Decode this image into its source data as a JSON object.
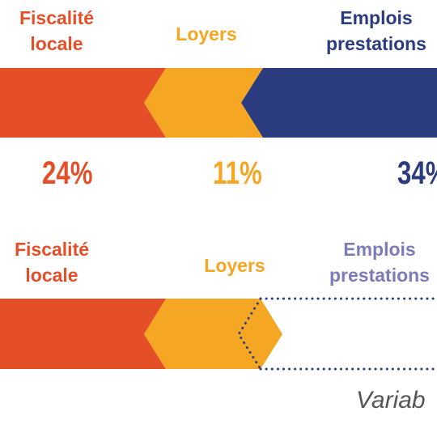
{
  "colors": {
    "orange_red": "#e44f28",
    "amber": "#f5a623",
    "navy": "#2a3b7e",
    "lavender": "#7e7cb8",
    "gray_text": "#555555"
  },
  "row1": {
    "labels": {
      "fiscalite_line1": "Fiscalité",
      "fiscalite_line2": "locale",
      "loyers": "Loyers",
      "emplois_line1": "Emplois",
      "emplois_line2": "prestations"
    },
    "percentages": {
      "fiscalite": "24%",
      "loyers": "11%",
      "emplois": "34%"
    }
  },
  "row2": {
    "labels": {
      "fiscalite_line1": "Fiscalité",
      "fiscalite_line2": "locale",
      "loyers": "Loyers",
      "emplois_line1": "Emplois",
      "emplois_line2": "prestations"
    },
    "caption": "Variab"
  }
}
